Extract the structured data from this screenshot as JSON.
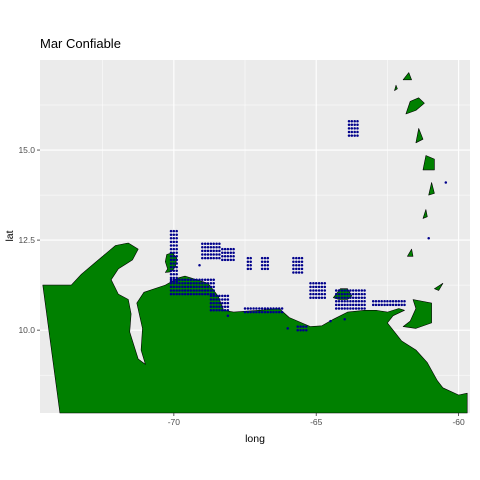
{
  "chart_data": {
    "type": "scatter",
    "title": "Mar Confiable",
    "xlabel": "long",
    "ylabel": "lat",
    "xlim": [
      -74.7,
      -59.6
    ],
    "ylim": [
      7.7,
      17.5
    ],
    "x_ticks": [
      -70,
      -65,
      -60
    ],
    "x_tick_labels": [
      "-70",
      "-65",
      "-60"
    ],
    "y_ticks": [
      10.0,
      12.5,
      15.0
    ],
    "y_tick_labels": [
      "10.0",
      "12.5",
      "15.0"
    ],
    "grid": true,
    "legend": "none",
    "background": "#ebebeb",
    "gridline_color": "#ffffff",
    "land_color": "#008000",
    "land_outline_color": "#000000",
    "point_color": "#00008b",
    "point_clusters": [
      {
        "long": [
          -70.1,
          -69.85
        ],
        "lat": [
          11.35,
          12.75
        ],
        "step": 0.1
      },
      {
        "long": [
          -70.1,
          -68.6
        ],
        "lat": [
          11.0,
          11.4
        ],
        "step": 0.1
      },
      {
        "long": [
          -68.7,
          -68.1
        ],
        "lat": [
          10.55,
          11.0
        ],
        "step": 0.1
      },
      {
        "long": [
          -69.0,
          -68.4
        ],
        "lat": [
          12.0,
          12.4
        ],
        "step": 0.1
      },
      {
        "long": [
          -68.3,
          -67.9
        ],
        "lat": [
          11.95,
          12.25
        ],
        "step": 0.1
      },
      {
        "long": [
          -67.4,
          -67.3
        ],
        "lat": [
          11.7,
          12.0
        ],
        "step": 0.1
      },
      {
        "long": [
          -66.9,
          -66.7
        ],
        "lat": [
          11.7,
          12.0
        ],
        "step": 0.1
      },
      {
        "long": [
          -65.8,
          -65.45
        ],
        "lat": [
          11.6,
          12.0
        ],
        "step": 0.1
      },
      {
        "long": [
          -65.2,
          -64.7
        ],
        "lat": [
          10.9,
          11.35
        ],
        "step": 0.1
      },
      {
        "long": [
          -64.3,
          -63.3
        ],
        "lat": [
          10.6,
          11.1
        ],
        "step": 0.1
      },
      {
        "long": [
          -63.0,
          -61.9
        ],
        "lat": [
          10.7,
          10.8
        ],
        "step": 0.1
      },
      {
        "long": [
          -65.65,
          -65.35
        ],
        "lat": [
          10.0,
          10.15
        ],
        "step": 0.1
      },
      {
        "long": [
          -67.5,
          -66.2
        ],
        "lat": [
          10.5,
          10.6
        ],
        "step": 0.1
      },
      {
        "long": [
          -63.85,
          -63.5
        ],
        "lat": [
          15.4,
          15.85
        ],
        "step": 0.1
      }
    ],
    "single_points": [
      {
        "long": -69.1,
        "lat": 11.8
      },
      {
        "long": -66.0,
        "lat": 10.05
      },
      {
        "long": -64.5,
        "lat": 10.25
      },
      {
        "long": -64.0,
        "lat": 10.3
      },
      {
        "long": -61.05,
        "lat": 12.55
      },
      {
        "long": -60.45,
        "lat": 14.1
      },
      {
        "long": -68.1,
        "lat": 10.4
      }
    ],
    "land_polygons": [
      {
        "name": "mainland",
        "points": [
          [
            -74.6,
            11.25
          ],
          [
            -73.6,
            11.25
          ],
          [
            -73.25,
            11.55
          ],
          [
            -72.8,
            11.85
          ],
          [
            -72.35,
            12.15
          ],
          [
            -72.05,
            12.35
          ],
          [
            -71.6,
            12.42
          ],
          [
            -71.25,
            12.25
          ],
          [
            -71.45,
            11.95
          ],
          [
            -71.95,
            11.7
          ],
          [
            -72.2,
            11.4
          ],
          [
            -71.95,
            11.0
          ],
          [
            -71.6,
            10.85
          ],
          [
            -71.5,
            10.45
          ],
          [
            -71.55,
            9.95
          ],
          [
            -71.25,
            9.2
          ],
          [
            -71.0,
            9.05
          ],
          [
            -71.15,
            9.45
          ],
          [
            -71.1,
            10.05
          ],
          [
            -71.3,
            10.75
          ],
          [
            -71.05,
            11.05
          ],
          [
            -70.3,
            11.25
          ],
          [
            -69.85,
            11.45
          ],
          [
            -69.6,
            11.5
          ],
          [
            -69.4,
            11.45
          ],
          [
            -68.8,
            11.3
          ],
          [
            -68.45,
            10.95
          ],
          [
            -68.25,
            10.55
          ],
          [
            -67.9,
            10.5
          ],
          [
            -67.0,
            10.55
          ],
          [
            -66.3,
            10.6
          ],
          [
            -65.95,
            10.35
          ],
          [
            -65.2,
            10.1
          ],
          [
            -64.8,
            10.12
          ],
          [
            -64.4,
            10.3
          ],
          [
            -63.9,
            10.5
          ],
          [
            -63.3,
            10.55
          ],
          [
            -62.9,
            10.55
          ],
          [
            -62.5,
            10.5
          ],
          [
            -62.1,
            10.6
          ],
          [
            -61.9,
            10.55
          ],
          [
            -62.3,
            10.4
          ],
          [
            -62.5,
            10.2
          ],
          [
            -62.2,
            9.9
          ],
          [
            -62.0,
            9.7
          ],
          [
            -61.5,
            9.45
          ],
          [
            -61.1,
            9.1
          ],
          [
            -60.75,
            8.6
          ],
          [
            -60.55,
            8.4
          ],
          [
            -60.0,
            8.2
          ],
          [
            -59.7,
            8.25
          ],
          [
            -59.7,
            7.7
          ],
          [
            -72.3,
            7.7
          ],
          [
            -74.0,
            7.7
          ]
        ]
      },
      {
        "name": "paraguana-peninsula",
        "points": [
          [
            -70.3,
            11.6
          ],
          [
            -70.1,
            11.62
          ],
          [
            -69.95,
            11.75
          ],
          [
            -69.9,
            12.0
          ],
          [
            -70.05,
            12.15
          ],
          [
            -70.25,
            12.1
          ],
          [
            -70.3,
            11.9
          ],
          [
            -70.22,
            11.7
          ]
        ]
      },
      {
        "name": "margarita",
        "points": [
          [
            -64.4,
            10.9
          ],
          [
            -64.15,
            11.15
          ],
          [
            -63.9,
            11.15
          ],
          [
            -63.75,
            10.95
          ],
          [
            -63.9,
            10.85
          ],
          [
            -64.2,
            10.85
          ]
        ]
      },
      {
        "name": "trinidad",
        "points": [
          [
            -61.95,
            10.1
          ],
          [
            -61.5,
            10.05
          ],
          [
            -60.95,
            10.2
          ],
          [
            -60.95,
            10.75
          ],
          [
            -61.6,
            10.85
          ],
          [
            -61.5,
            10.6
          ],
          [
            -61.7,
            10.25
          ]
        ]
      },
      {
        "name": "tobago",
        "points": [
          [
            -60.85,
            11.15
          ],
          [
            -60.55,
            11.3
          ],
          [
            -60.7,
            11.1
          ]
        ]
      },
      {
        "name": "grenada",
        "points": [
          [
            -61.8,
            12.05
          ],
          [
            -61.65,
            12.25
          ],
          [
            -61.6,
            12.05
          ]
        ]
      },
      {
        "name": "st-vincent",
        "points": [
          [
            -61.25,
            13.1
          ],
          [
            -61.15,
            13.35
          ],
          [
            -61.1,
            13.15
          ]
        ]
      },
      {
        "name": "st-lucia",
        "points": [
          [
            -61.05,
            13.75
          ],
          [
            -60.95,
            14.1
          ],
          [
            -60.85,
            13.8
          ]
        ]
      },
      {
        "name": "martinique",
        "points": [
          [
            -61.25,
            14.45
          ],
          [
            -61.15,
            14.85
          ],
          [
            -60.85,
            14.75
          ],
          [
            -60.85,
            14.45
          ]
        ]
      },
      {
        "name": "dominica",
        "points": [
          [
            -61.5,
            15.2
          ],
          [
            -61.4,
            15.6
          ],
          [
            -61.25,
            15.3
          ]
        ]
      },
      {
        "name": "guadeloupe",
        "points": [
          [
            -61.85,
            16.0
          ],
          [
            -61.7,
            16.35
          ],
          [
            -61.4,
            16.45
          ],
          [
            -61.2,
            16.3
          ],
          [
            -61.5,
            16.1
          ]
        ]
      },
      {
        "name": "antigua",
        "points": [
          [
            -61.95,
            16.95
          ],
          [
            -61.75,
            17.15
          ],
          [
            -61.65,
            16.95
          ]
        ]
      },
      {
        "name": "montserrat",
        "points": [
          [
            -62.25,
            16.65
          ],
          [
            -62.2,
            16.8
          ],
          [
            -62.15,
            16.7
          ]
        ]
      }
    ]
  }
}
